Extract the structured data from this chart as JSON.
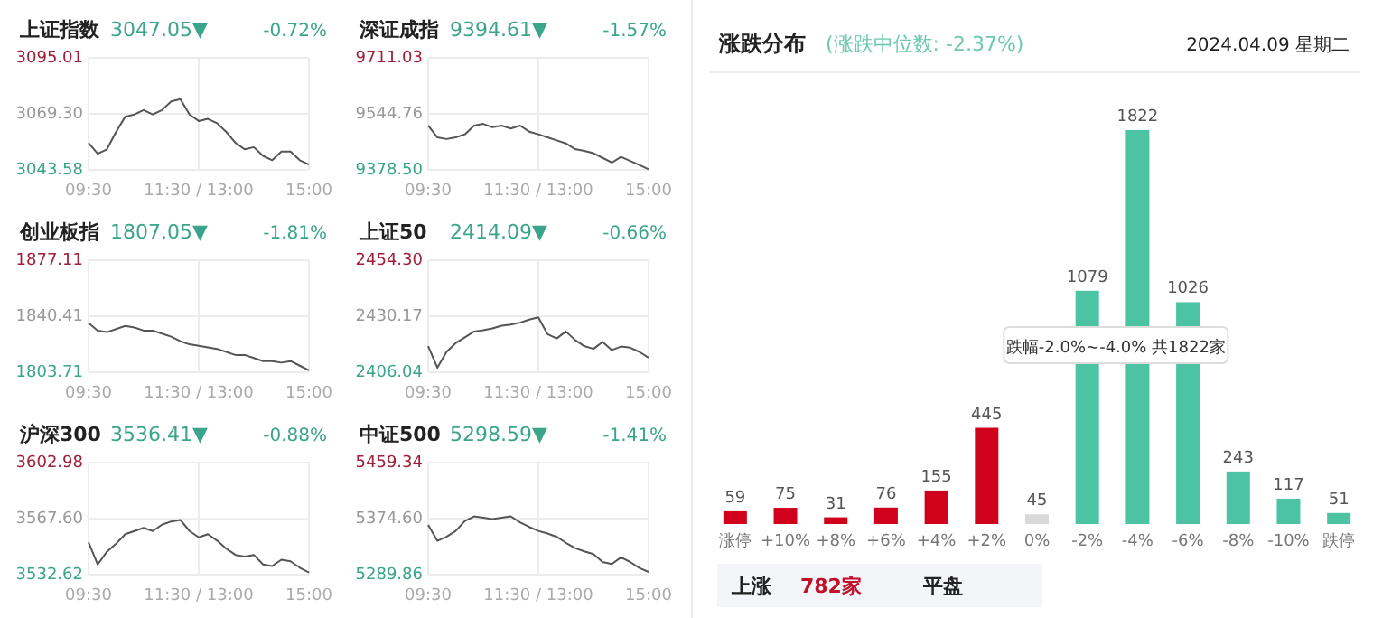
{
  "chart_data": [
    {
      "type": "line",
      "title": "上证指数",
      "subtitle": "3047.05▼",
      "annotations": [
        "-0.72%"
      ],
      "color": "#555555",
      "grid": true,
      "ylim": [
        3043.58,
        3095.01
      ],
      "yticks": [
        3043.58,
        {
          "value": 3069.3,
          "label": "3069.30"
        },
        3095.01
      ],
      "categories": [
        "09:30",
        null,
        null,
        null,
        null,
        null,
        null,
        null,
        null,
        null,
        null,
        null,
        "11:30 / 13:00",
        null,
        null,
        null,
        null,
        null,
        null,
        null,
        null,
        null,
        null,
        null,
        "15:00"
      ],
      "values": [
        3056,
        3051,
        3053,
        3061,
        3068,
        3069,
        3071,
        3069,
        3071,
        3075,
        3076,
        3069,
        3066,
        3067,
        3065,
        3061,
        3056,
        3053,
        3054,
        3050,
        3048,
        3052,
        3052,
        3048,
        3046
      ]
    },
    {
      "type": "line",
      "title": "深证成指",
      "subtitle": "9394.61▼",
      "annotations": [
        "-1.57%"
      ],
      "color": "#555555",
      "grid": true,
      "ylim": [
        9378.5,
        9711.03
      ],
      "yticks": [
        {
          "value": 9378.5,
          "label": "9378.50"
        },
        9544.76,
        9711.03
      ],
      "categories": [
        "09:30",
        null,
        null,
        null,
        null,
        null,
        null,
        null,
        null,
        null,
        null,
        null,
        "11:30 / 13:00",
        null,
        null,
        null,
        null,
        null,
        null,
        null,
        null,
        null,
        null,
        null,
        "15:00"
      ],
      "values": [
        9510,
        9475,
        9470,
        9475,
        9484,
        9510,
        9515,
        9505,
        9510,
        9501,
        9510,
        9492,
        9484,
        9475,
        9466,
        9457,
        9440,
        9435,
        9428,
        9414,
        9400,
        9417,
        9405,
        9393,
        9380
      ]
    },
    {
      "type": "line",
      "title": "创业板指",
      "subtitle": "1807.05▼",
      "annotations": [
        "-1.81%"
      ],
      "color": "#555555",
      "grid": true,
      "ylim": [
        1803.71,
        1877.11
      ],
      "yticks": [
        1803.71,
        1840.41,
        1877.11
      ],
      "categories": [
        "09:30",
        null,
        null,
        null,
        null,
        null,
        null,
        null,
        null,
        null,
        null,
        null,
        "11:30 / 13:00",
        null,
        null,
        null,
        null,
        null,
        null,
        null,
        null,
        null,
        null,
        null,
        "15:00"
      ],
      "values": [
        1836,
        1831,
        1830,
        1832,
        1834,
        1833,
        1831,
        1831,
        1829,
        1827,
        1824,
        1822,
        1821,
        1820,
        1819,
        1817,
        1815,
        1815,
        1813,
        1811,
        1811,
        1810,
        1811,
        1808,
        1805
      ]
    },
    {
      "type": "line",
      "title": "上证50",
      "subtitle": "2414.09▼",
      "annotations": [
        "-0.66%"
      ],
      "color": "#555555",
      "grid": true,
      "ylim": [
        2406.04,
        2454.3
      ],
      "yticks": [
        2406.04,
        2430.17,
        {
          "value": 2454.3,
          "label": "2454.30"
        }
      ],
      "categories": [
        "09:30",
        null,
        null,
        null,
        null,
        null,
        null,
        null,
        null,
        null,
        null,
        null,
        "11:30 / 13:00",
        null,
        null,
        null,
        null,
        null,
        null,
        null,
        null,
        null,
        null,
        null,
        "15:00"
      ],
      "values": [
        2417.3,
        2408.0,
        2414.8,
        2418.6,
        2421.1,
        2423.6,
        2424.1,
        2424.9,
        2426.1,
        2426.6,
        2427.4,
        2428.7,
        2429.7,
        2422.4,
        2420.6,
        2423.6,
        2419.9,
        2417.3,
        2416.1,
        2419.1,
        2415.6,
        2417.1,
        2416.6,
        2414.8,
        2412.3
      ]
    },
    {
      "type": "line",
      "title": "沪深300",
      "subtitle": "3536.41▼",
      "annotations": [
        "-0.88%"
      ],
      "color": "#555555",
      "grid": true,
      "ylim": [
        3532.62,
        3602.98
      ],
      "yticks": [
        3532.62,
        {
          "value": 3567.6,
          "label": "3567.60"
        },
        3602.98
      ],
      "categories": [
        "09:30",
        null,
        null,
        null,
        null,
        null,
        null,
        null,
        null,
        null,
        null,
        null,
        "11:30 / 13:00",
        null,
        null,
        null,
        null,
        null,
        null,
        null,
        null,
        null,
        null,
        null,
        "15:00"
      ],
      "values": [
        3553,
        3539,
        3547,
        3552,
        3558,
        3560,
        3562,
        3560,
        3564,
        3566,
        3567,
        3560,
        3556,
        3558,
        3554,
        3549,
        3545,
        3544,
        3545,
        3539,
        3538,
        3542,
        3541,
        3537,
        3534
      ]
    },
    {
      "type": "line",
      "title": "中证500",
      "subtitle": "5298.59▼",
      "annotations": [
        "-1.41%"
      ],
      "color": "#555555",
      "grid": true,
      "ylim": [
        5289.86,
        5459.34
      ],
      "yticks": [
        5289.86,
        {
          "value": 5374.6,
          "label": "5374.60"
        },
        5459.34
      ],
      "categories": [
        "09:30",
        null,
        null,
        null,
        null,
        null,
        null,
        null,
        null,
        null,
        null,
        null,
        "11:30 / 13:00",
        null,
        null,
        null,
        null,
        null,
        null,
        null,
        null,
        null,
        null,
        null,
        "15:00"
      ],
      "values": [
        5365,
        5341,
        5347,
        5356,
        5371,
        5378,
        5376,
        5374,
        5376,
        5378,
        5369,
        5362,
        5356,
        5352,
        5347,
        5338,
        5330,
        5325,
        5321,
        5309,
        5306,
        5316,
        5309,
        5300,
        5294
      ]
    },
    {
      "type": "bar",
      "title": "涨跌分布",
      "subtitle": "(涨跌中位数: -2.37%)",
      "data_labels": true,
      "categories": [
        "涨停",
        "+10%",
        "+8%",
        "+6%",
        "+4%",
        "+2%",
        "0%",
        "-2%",
        "-4%",
        "-6%",
        "-8%",
        "-10%",
        "跌停"
      ],
      "values": [
        59,
        75,
        31,
        76,
        155,
        445,
        45,
        1079,
        1822,
        1026,
        243,
        117,
        51
      ],
      "colors": [
        "#d0021b",
        "#d0021b",
        "#d0021b",
        "#d0021b",
        "#d0021b",
        "#d0021b",
        "#d9d9d9",
        "#4cc3a3",
        "#4cc3a3",
        "#4cc3a3",
        "#4cc3a3",
        "#4cc3a3",
        "#4cc3a3"
      ],
      "annotations": [
        "2024.04.09 星期二",
        "跌幅-2.0%~-4.0% 共1822家",
        "上涨",
        "782家",
        "平盘"
      ]
    }
  ]
}
